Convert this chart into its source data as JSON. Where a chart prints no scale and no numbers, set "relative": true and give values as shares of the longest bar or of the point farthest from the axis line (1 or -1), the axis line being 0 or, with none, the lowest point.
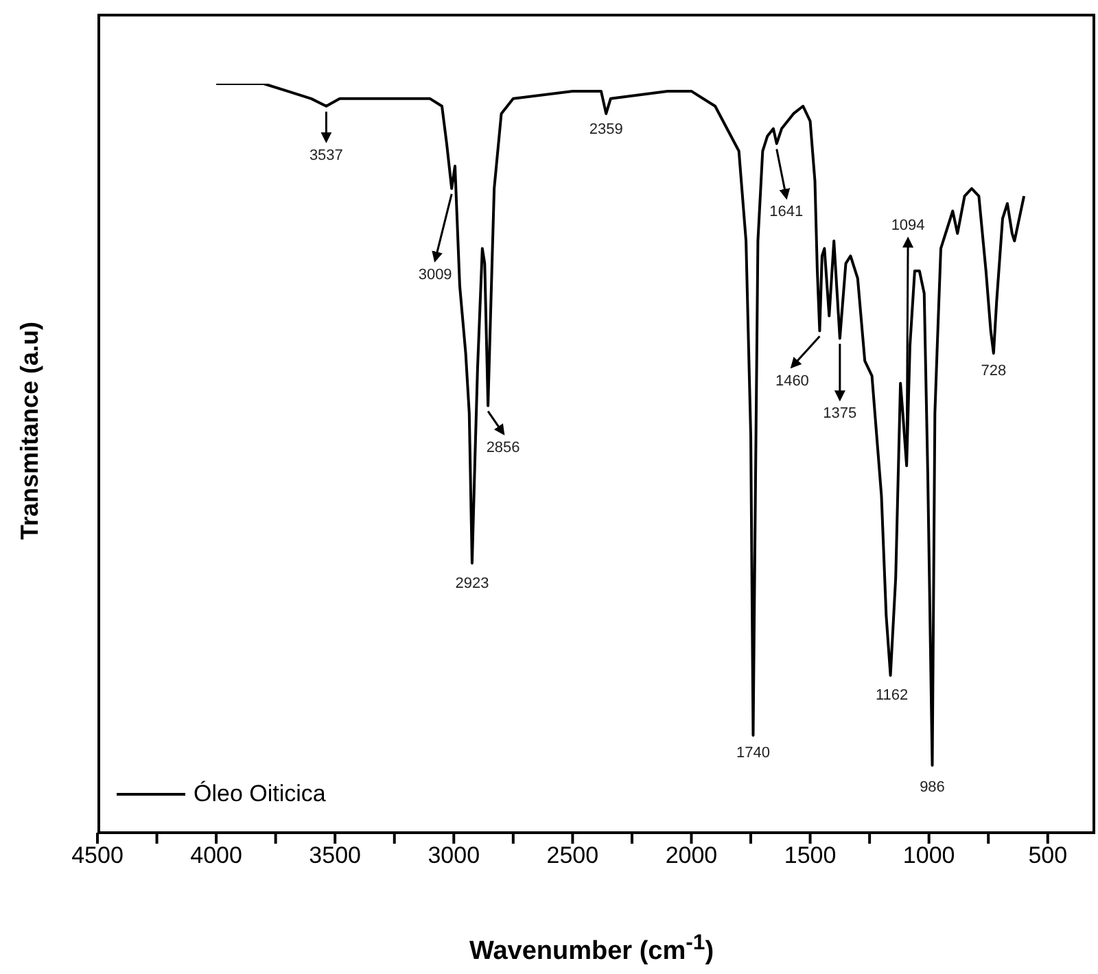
{
  "chart_data": {
    "type": "line",
    "xlabel": "Wavenumber (cm$^{-1}$)",
    "ylabel": "Transmitance (a.u)",
    "relative": true,
    "legend": "bottom left",
    "marker": "none",
    "line_style": "solid",
    "grid": false,
    "xlim": [
      4500,
      300
    ],
    "xticks": [
      4500,
      {
        "value": 4250,
        "label": null
      },
      4000,
      {
        "value": 3750,
        "label": null
      },
      3500,
      {
        "value": 3250,
        "label": null
      },
      3000,
      {
        "value": 2750,
        "label": null
      },
      2500,
      {
        "value": 2250,
        "label": null
      },
      2000,
      {
        "value": 1750,
        "label": null
      },
      1500,
      {
        "value": 1250,
        "label": null
      },
      1000,
      {
        "value": 750,
        "label": null
      },
      500
    ],
    "x": [
      4000,
      3800,
      3700,
      3600,
      3537,
      3480,
      3300,
      3100,
      3050,
      3030,
      3009,
      2995,
      2975,
      2950,
      2935,
      2923,
      2910,
      2900,
      2880,
      2870,
      2856,
      2840,
      2830,
      2800,
      2750,
      2500,
      2380,
      2359,
      2340,
      2100,
      2000,
      1900,
      1800,
      1770,
      1750,
      1740,
      1730,
      1720,
      1700,
      1680,
      1655,
      1641,
      1620,
      1570,
      1530,
      1500,
      1480,
      1470,
      1460,
      1450,
      1440,
      1420,
      1400,
      1375,
      1350,
      1330,
      1300,
      1270,
      1240,
      1200,
      1180,
      1162,
      1140,
      1120,
      1110,
      1094,
      1080,
      1060,
      1040,
      1020,
      1005,
      986,
      975,
      965,
      950,
      930,
      900,
      880,
      850,
      820,
      790,
      760,
      740,
      728,
      715,
      690,
      670,
      650,
      640,
      620,
      600
    ],
    "series": [
      {
        "name": "Óleo Oiticica",
        "color": "#000000",
        "values": [
          1.0,
          1.0,
          0.99,
          0.98,
          0.97,
          0.98,
          0.98,
          0.98,
          0.97,
          0.92,
          0.86,
          0.89,
          0.73,
          0.64,
          0.56,
          0.36,
          0.51,
          0.62,
          0.78,
          0.76,
          0.57,
          0.75,
          0.86,
          0.96,
          0.98,
          0.99,
          0.99,
          0.96,
          0.98,
          0.99,
          0.99,
          0.97,
          0.91,
          0.79,
          0.53,
          0.13,
          0.47,
          0.79,
          0.91,
          0.93,
          0.94,
          0.92,
          0.94,
          0.96,
          0.97,
          0.95,
          0.87,
          0.75,
          0.67,
          0.77,
          0.78,
          0.69,
          0.79,
          0.66,
          0.76,
          0.77,
          0.74,
          0.63,
          0.61,
          0.45,
          0.29,
          0.21,
          0.34,
          0.6,
          0.56,
          0.49,
          0.65,
          0.75,
          0.75,
          0.72,
          0.48,
          0.09,
          0.56,
          0.65,
          0.78,
          0.8,
          0.83,
          0.8,
          0.85,
          0.86,
          0.85,
          0.75,
          0.67,
          0.64,
          0.71,
          0.82,
          0.84,
          0.8,
          0.79,
          0.82,
          0.85
        ]
      }
    ],
    "annotations": [
      {
        "text": "3537",
        "x": 3537,
        "y": 0.97
      },
      {
        "text": "3009",
        "x": 3009,
        "y": 0.86
      },
      {
        "text": "2923",
        "x": 2923,
        "y": 0.36
      },
      {
        "text": "2856",
        "x": 2856,
        "y": 0.57
      },
      {
        "text": "2359",
        "x": 2359,
        "y": 0.96
      },
      {
        "text": "1740",
        "x": 1740,
        "y": 0.13
      },
      {
        "text": "1641",
        "x": 1641,
        "y": 0.92
      },
      {
        "text": "1460",
        "x": 1460,
        "y": 0.67
      },
      {
        "text": "1375",
        "x": 1375,
        "y": 0.66
      },
      {
        "text": "1162",
        "x": 1162,
        "y": 0.21
      },
      {
        "text": "1094",
        "x": 1094,
        "y": 0.49
      },
      {
        "text": "986",
        "x": 986,
        "y": 0.09
      },
      {
        "text": "728",
        "x": 728,
        "y": 0.64
      }
    ]
  }
}
